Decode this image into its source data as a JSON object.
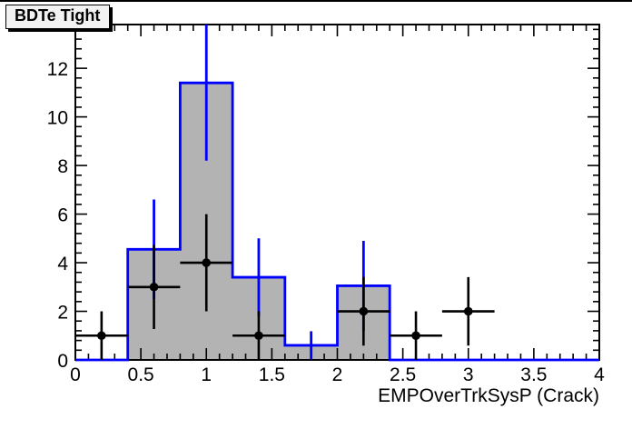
{
  "chart_data": {
    "type": "bar",
    "subtype": "root-histogram-with-data-points",
    "title": "BDTe Tight",
    "xlabel": "EMPOverTrkSysP (Crack)",
    "ylabel": "",
    "xlim": [
      0,
      4
    ],
    "ylim": [
      0,
      13.8
    ],
    "grid": false,
    "legend": "none",
    "x_major_ticks": [
      0,
      0.5,
      1,
      1.5,
      2,
      2.5,
      3,
      3.5,
      4
    ],
    "x_tick_labels": [
      "0",
      "0.5",
      "1",
      "1.5",
      "2",
      "2.5",
      "3",
      "3.5",
      "4"
    ],
    "x_minor_step": 0.1,
    "y_major_ticks": [
      0,
      2,
      4,
      6,
      8,
      10,
      12
    ],
    "y_tick_labels": [
      "0",
      "2",
      "4",
      "6",
      "8",
      "10",
      "12"
    ],
    "y_minor_step": 0.4,
    "histogram": {
      "name": "filled-mc-histogram",
      "line_color": "#0000ff",
      "fill_color": "#b3b3b3",
      "bin_edges": [
        0,
        0.4,
        0.8,
        1.2,
        1.6,
        2.0,
        2.4,
        2.8,
        3.2,
        3.6,
        4.0
      ],
      "values": [
        0,
        4.55,
        11.4,
        3.4,
        0.6,
        3.05,
        0,
        0,
        0,
        0
      ],
      "errors": [
        0,
        2.05,
        3.2,
        1.6,
        0.58,
        1.85,
        0,
        0,
        0,
        0
      ]
    },
    "data_points": {
      "name": "black-marker-data",
      "color": "#000000",
      "points": [
        {
          "x": 0.2,
          "y": 1,
          "xerr": 0.2,
          "yerr": 1.0
        },
        {
          "x": 0.6,
          "y": 3,
          "xerr": 0.2,
          "yerr": 1.73
        },
        {
          "x": 1.0,
          "y": 4,
          "xerr": 0.2,
          "yerr": 2.0
        },
        {
          "x": 1.4,
          "y": 1,
          "xerr": 0.2,
          "yerr": 1.0
        },
        {
          "x": 2.2,
          "y": 2,
          "xerr": 0.2,
          "yerr": 1.41
        },
        {
          "x": 2.6,
          "y": 1,
          "xerr": 0.2,
          "yerr": 1.0
        },
        {
          "x": 3.0,
          "y": 2,
          "xerr": 0.2,
          "yerr": 1.41
        }
      ]
    },
    "colors": {
      "frame": "#000000",
      "background": "#ffffff",
      "title_box_bg": "#f2f2f2",
      "title_box_border": "#000000"
    }
  }
}
